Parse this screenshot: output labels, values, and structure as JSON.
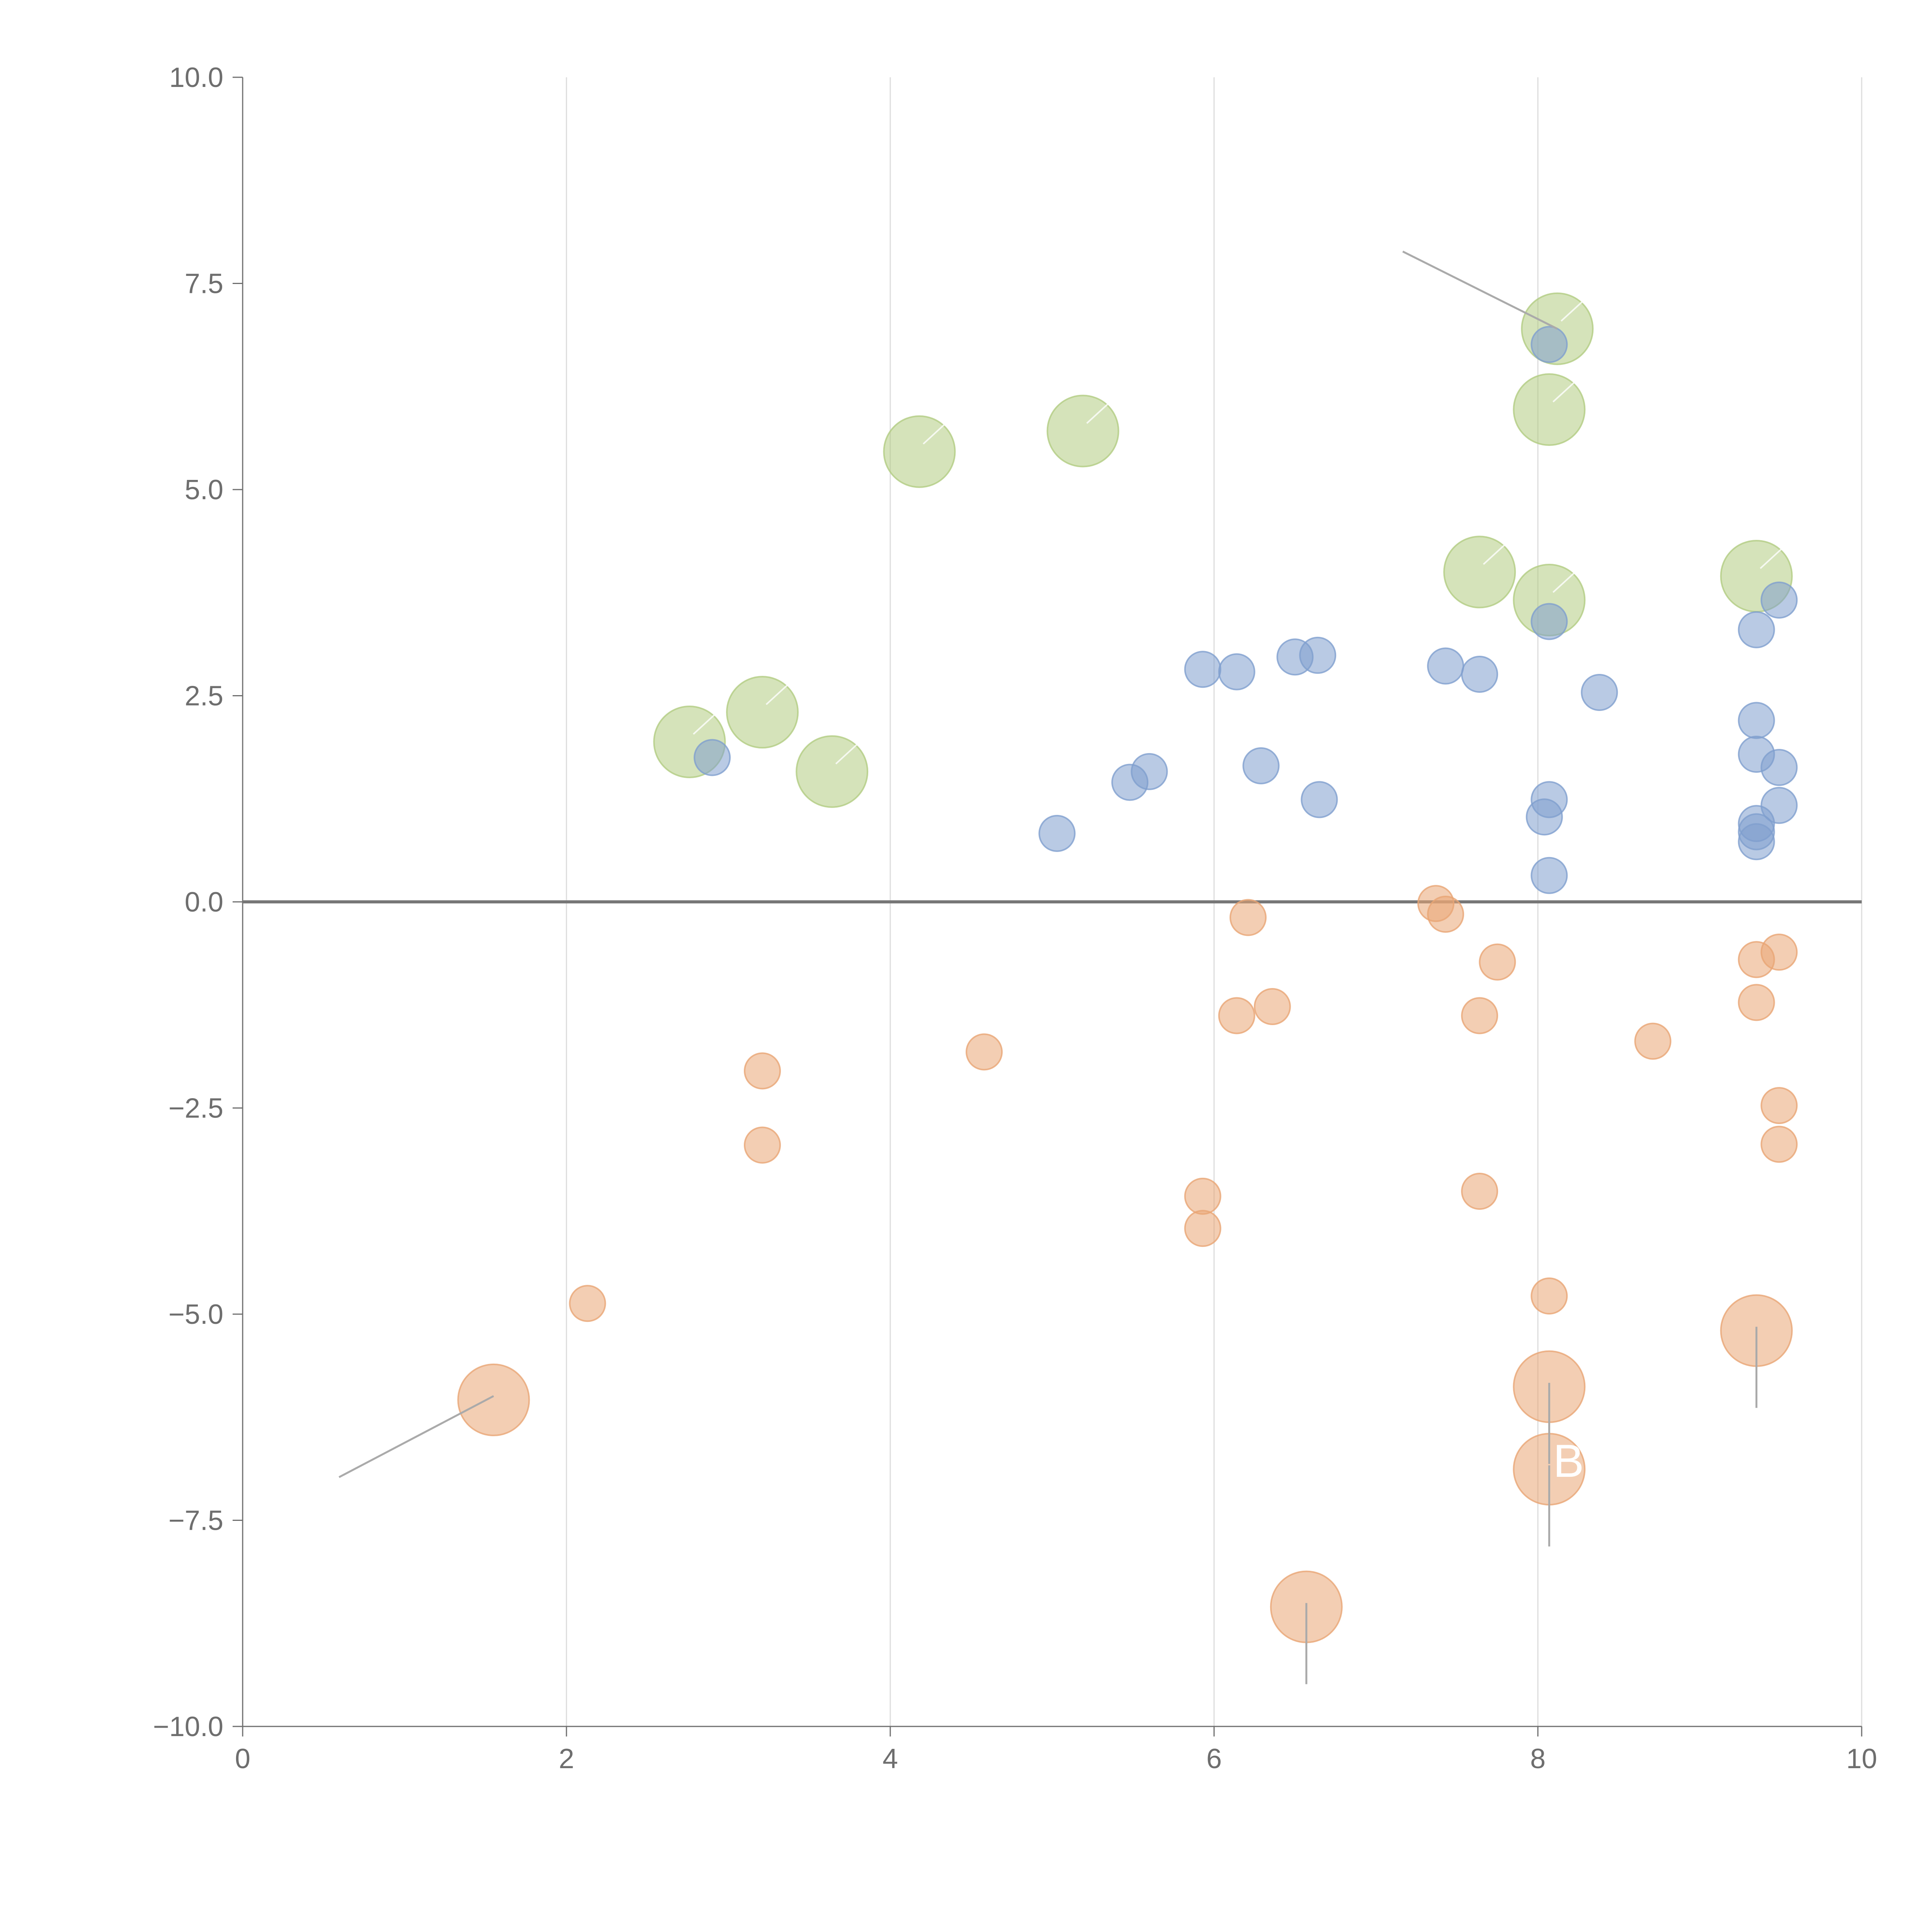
{
  "chart_data": {
    "type": "scatter",
    "title": "",
    "xlabel": "",
    "ylabel": "",
    "xlim": [
      0,
      10
    ],
    "ylim": [
      -10,
      10
    ],
    "grid": "vertical",
    "x_ticks": [
      "0",
      "2",
      "4",
      "6",
      "8",
      "10"
    ],
    "y_ticks": [
      "10.0",
      "7.5",
      "5.0",
      "2.5",
      "0.0",
      "−2.5",
      "−5.0",
      "−7.5",
      "−10.0"
    ],
    "colors": {
      "blue": "#7f9fce",
      "orange": "#e9a574",
      "green": "#b2cc82",
      "axis": "#6e6e6e",
      "grid": "#dcdcdc"
    },
    "series": [
      {
        "name": "blue",
        "points": [
          {
            "x": 2.9,
            "y": 1.75
          },
          {
            "x": 5.03,
            "y": 0.83
          },
          {
            "x": 5.48,
            "y": 1.45
          },
          {
            "x": 5.6,
            "y": 1.58
          },
          {
            "x": 5.93,
            "y": 2.82
          },
          {
            "x": 6.14,
            "y": 2.79
          },
          {
            "x": 6.29,
            "y": 1.65
          },
          {
            "x": 6.5,
            "y": 2.97
          },
          {
            "x": 6.64,
            "y": 2.99
          },
          {
            "x": 6.65,
            "y": 1.24
          },
          {
            "x": 7.43,
            "y": 2.86
          },
          {
            "x": 7.64,
            "y": 2.76
          },
          {
            "x": 8.04,
            "y": 1.03
          },
          {
            "x": 8.07,
            "y": 1.24
          },
          {
            "x": 8.07,
            "y": 0.32
          },
          {
            "x": 8.07,
            "y": 3.4
          },
          {
            "x": 8.07,
            "y": 6.76
          },
          {
            "x": 8.38,
            "y": 2.54
          },
          {
            "x": 9.35,
            "y": 3.3
          },
          {
            "x": 9.35,
            "y": 2.2
          },
          {
            "x": 9.35,
            "y": 1.79
          },
          {
            "x": 9.35,
            "y": 0.95
          },
          {
            "x": 9.35,
            "y": 0.85
          },
          {
            "x": 9.35,
            "y": 0.73
          },
          {
            "x": 9.49,
            "y": 3.66
          },
          {
            "x": 9.49,
            "y": 1.63
          },
          {
            "x": 9.49,
            "y": 1.17
          }
        ]
      },
      {
        "name": "orange",
        "points": [
          {
            "x": 2.13,
            "y": -4.87
          },
          {
            "x": 3.21,
            "y": -2.05
          },
          {
            "x": 3.21,
            "y": -2.95
          },
          {
            "x": 4.58,
            "y": -1.82
          },
          {
            "x": 5.93,
            "y": -3.57
          },
          {
            "x": 5.93,
            "y": -3.96
          },
          {
            "x": 6.14,
            "y": -1.38
          },
          {
            "x": 6.21,
            "y": -0.19
          },
          {
            "x": 6.36,
            "y": -1.27
          },
          {
            "x": 7.37,
            "y": -0.02
          },
          {
            "x": 7.43,
            "y": -0.15
          },
          {
            "x": 7.64,
            "y": -1.38
          },
          {
            "x": 7.64,
            "y": -3.51
          },
          {
            "x": 7.75,
            "y": -0.73
          },
          {
            "x": 8.07,
            "y": -4.78
          },
          {
            "x": 8.71,
            "y": -1.69
          },
          {
            "x": 9.35,
            "y": -0.7
          },
          {
            "x": 9.35,
            "y": -1.22
          },
          {
            "x": 9.49,
            "y": -0.61
          },
          {
            "x": 9.49,
            "y": -2.47
          },
          {
            "x": 9.49,
            "y": -2.94
          }
        ]
      },
      {
        "name": "orange-large",
        "points": [
          {
            "x": 1.55,
            "y": -6.04
          },
          {
            "x": 6.57,
            "y": -8.55
          },
          {
            "x": 8.07,
            "y": -5.88
          },
          {
            "x": 8.07,
            "y": -6.88
          },
          {
            "x": 9.35,
            "y": -5.2
          }
        ]
      },
      {
        "name": "green",
        "points": [
          {
            "x": 2.76,
            "y": 1.94
          },
          {
            "x": 3.21,
            "y": 2.3
          },
          {
            "x": 3.64,
            "y": 1.58
          },
          {
            "x": 4.18,
            "y": 5.46
          },
          {
            "x": 5.19,
            "y": 5.71
          },
          {
            "x": 7.64,
            "y": 4.0
          },
          {
            "x": 8.07,
            "y": 3.66
          },
          {
            "x": 8.07,
            "y": 5.97
          },
          {
            "x": 8.12,
            "y": 6.95
          },
          {
            "x": 9.35,
            "y": 3.95
          }
        ]
      }
    ],
    "annotations": [
      {
        "label": "B",
        "x": 8.07,
        "y": -6.88
      }
    ]
  }
}
